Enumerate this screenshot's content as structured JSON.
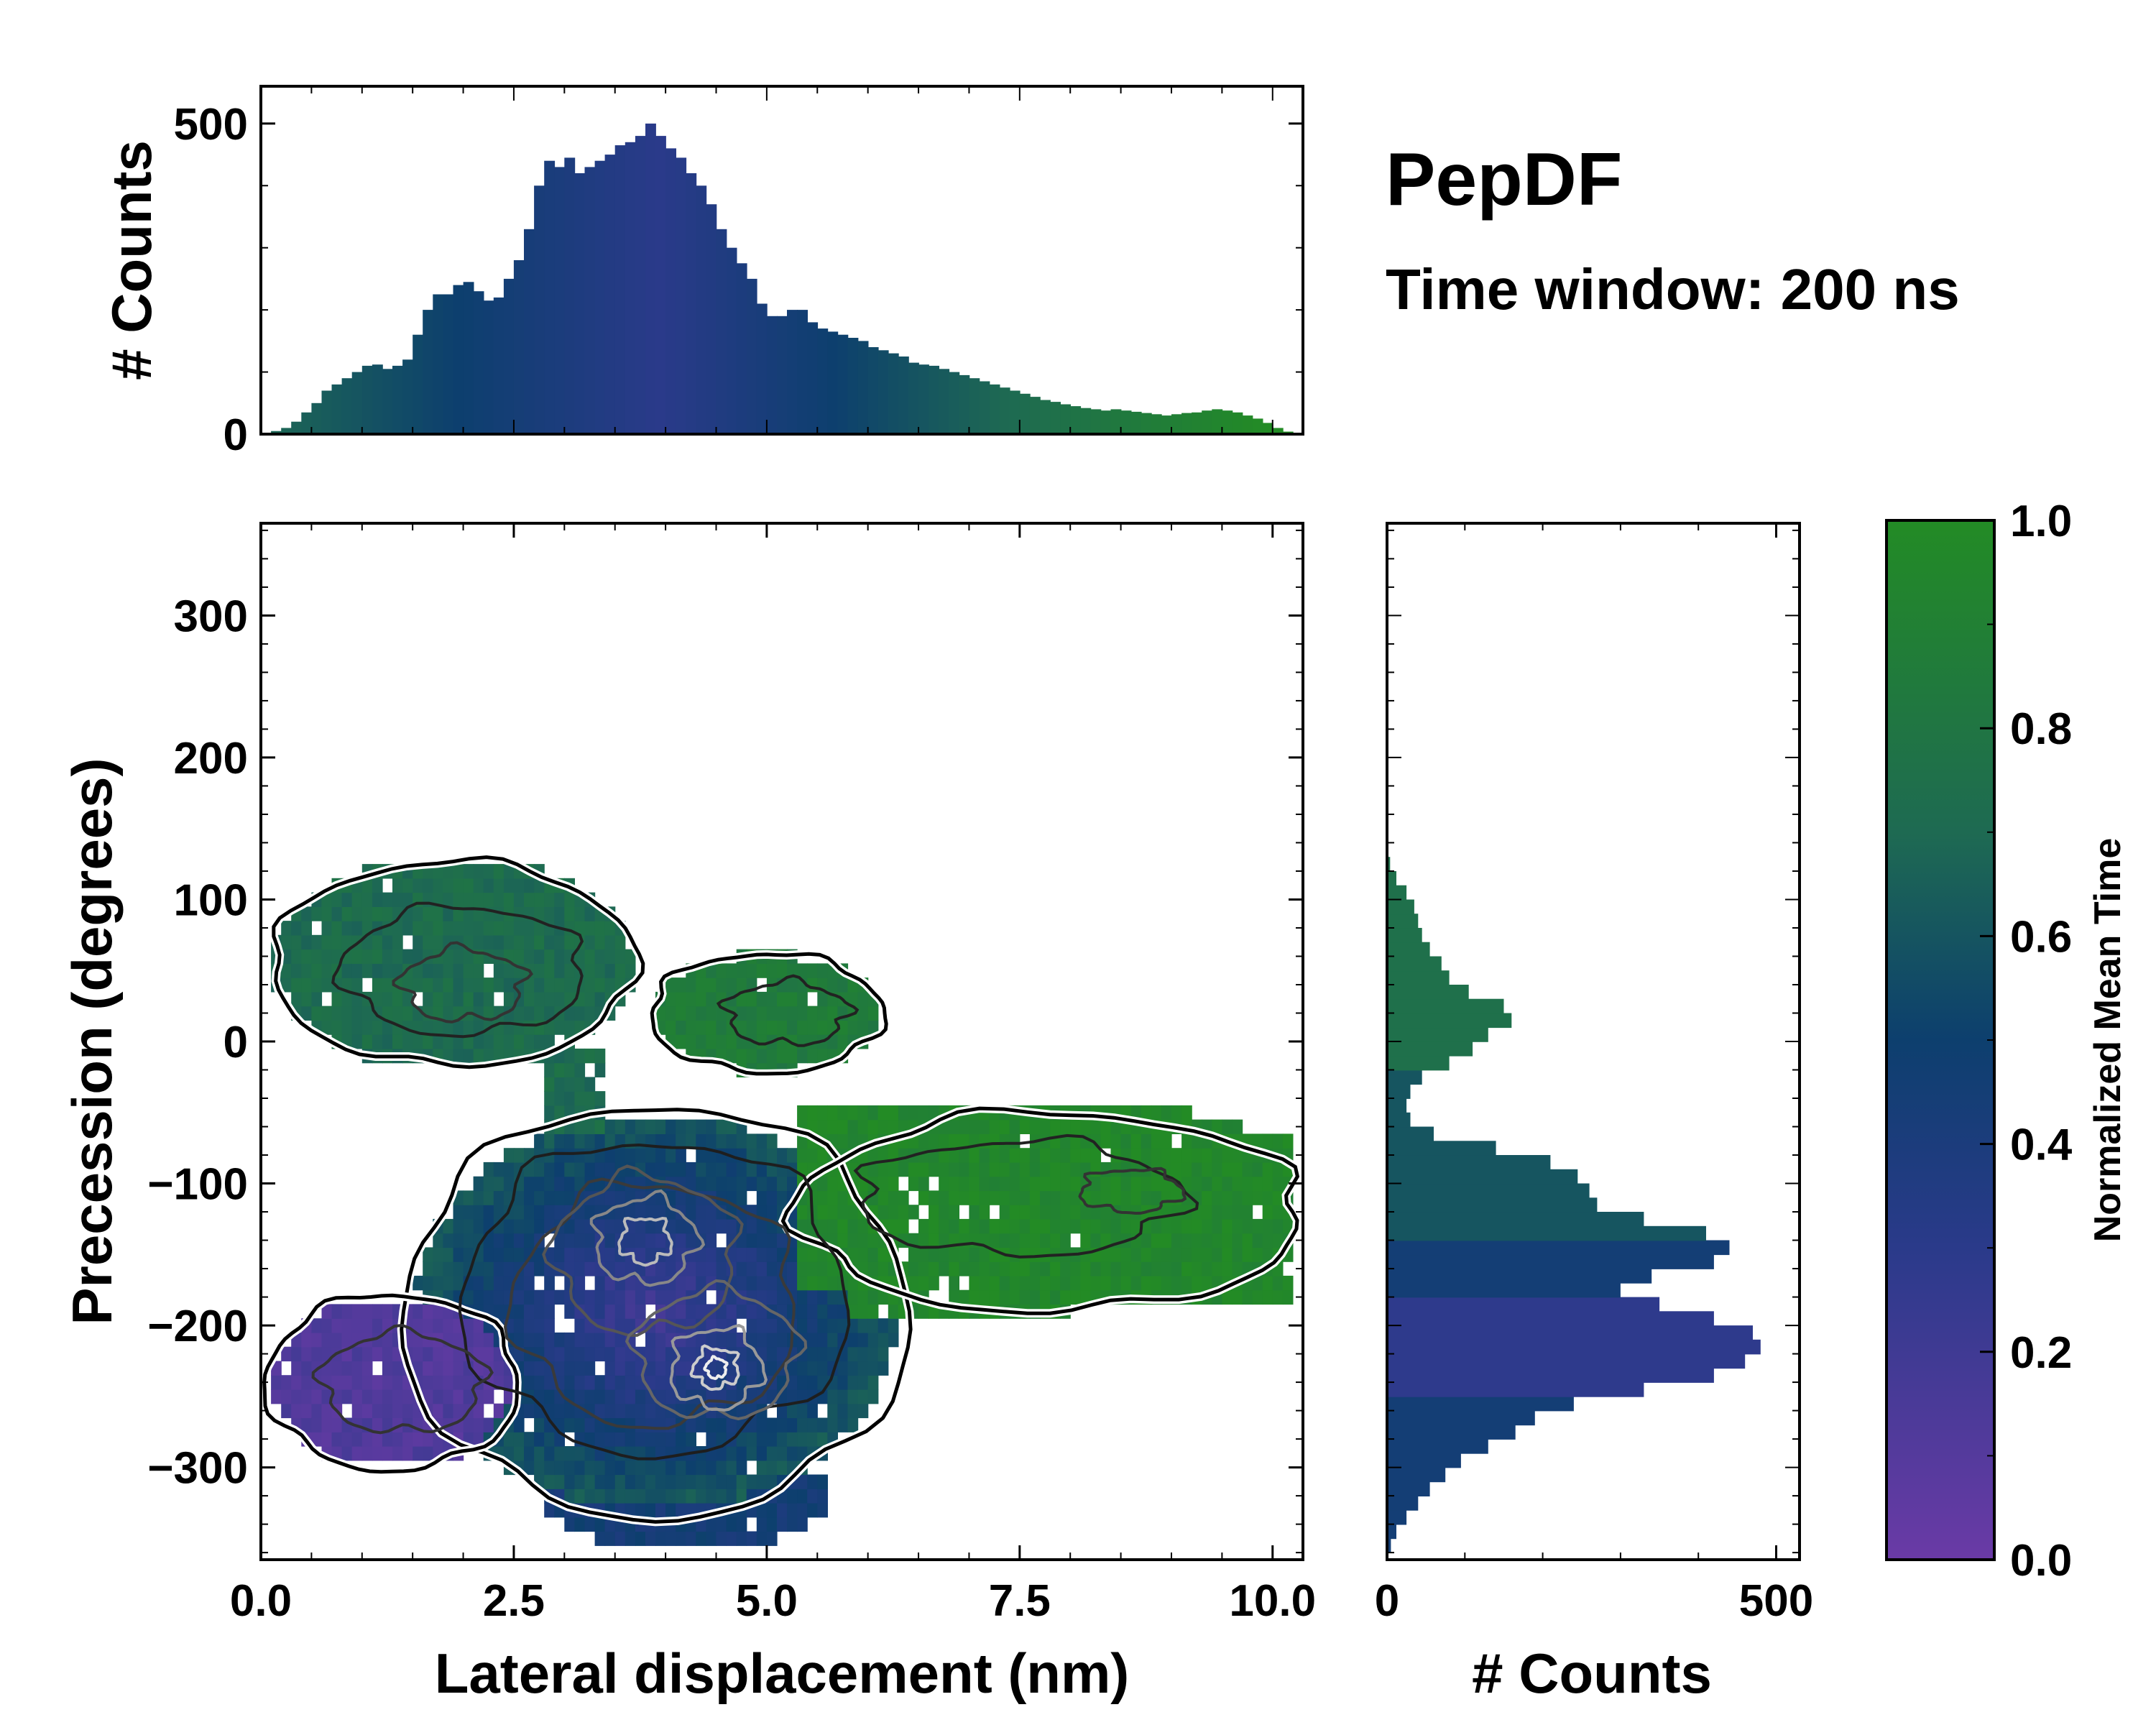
{
  "figure": {
    "title": "PepDF",
    "subtitle": "Time window: 200 ns"
  },
  "colors": {
    "purple": "#6a3aa6",
    "indigo": "#2a3a8a",
    "navy": "#0d3f6e",
    "teal": "#1e6a52",
    "green": "#238b25"
  },
  "chart_data": [
    {
      "id": "top-histogram",
      "type": "bar",
      "description_role": "marginal histogram of lateral displacement",
      "ylabel": "# Counts",
      "xlim": [
        0,
        10.3
      ],
      "ylim": [
        0,
        560
      ],
      "yticks": [
        0,
        500
      ],
      "ytick_labels": [
        "0",
        "500"
      ],
      "bin_width": 0.1,
      "x": [
        0.1,
        0.2,
        0.3,
        0.4,
        0.5,
        0.6,
        0.7,
        0.8,
        0.9,
        1.0,
        1.1,
        1.2,
        1.3,
        1.4,
        1.5,
        1.6,
        1.7,
        1.8,
        1.9,
        2.0,
        2.1,
        2.2,
        2.3,
        2.4,
        2.5,
        2.6,
        2.7,
        2.8,
        2.9,
        3.0,
        3.1,
        3.2,
        3.3,
        3.4,
        3.5,
        3.6,
        3.7,
        3.8,
        3.9,
        4.0,
        4.1,
        4.2,
        4.3,
        4.4,
        4.5,
        4.6,
        4.7,
        4.8,
        4.9,
        5.0,
        5.1,
        5.2,
        5.3,
        5.4,
        5.5,
        5.6,
        5.7,
        5.8,
        5.9,
        6.0,
        6.1,
        6.2,
        6.3,
        6.4,
        6.5,
        6.6,
        6.7,
        6.8,
        6.9,
        7.0,
        7.1,
        7.2,
        7.3,
        7.4,
        7.5,
        7.6,
        7.7,
        7.8,
        7.9,
        8.0,
        8.1,
        8.2,
        8.3,
        8.4,
        8.5,
        8.6,
        8.7,
        8.8,
        8.9,
        9.0,
        9.1,
        9.2,
        9.3,
        9.4,
        9.5,
        9.6,
        9.7,
        9.8,
        9.9,
        10.0,
        10.1,
        10.2
      ],
      "values": [
        2,
        5,
        10,
        20,
        35,
        50,
        70,
        80,
        90,
        100,
        110,
        112,
        105,
        110,
        120,
        160,
        200,
        225,
        225,
        240,
        245,
        230,
        215,
        220,
        250,
        280,
        330,
        400,
        440,
        430,
        445,
        420,
        430,
        440,
        450,
        465,
        470,
        480,
        500,
        480,
        460,
        445,
        420,
        400,
        370,
        330,
        300,
        275,
        250,
        210,
        190,
        190,
        200,
        200,
        180,
        170,
        165,
        160,
        155,
        150,
        140,
        135,
        130,
        125,
        115,
        112,
        110,
        105,
        100,
        95,
        90,
        85,
        80,
        75,
        70,
        65,
        60,
        55,
        52,
        48,
        45,
        42,
        40,
        38,
        40,
        38,
        36,
        34,
        32,
        30,
        32,
        34,
        35,
        38,
        40,
        38,
        35,
        30,
        25,
        18,
        10,
        4
      ]
    },
    {
      "id": "right-histogram",
      "type": "bar",
      "orientation": "horizontal",
      "description_role": "marginal histogram of precession",
      "xlabel": "# Counts",
      "xlim": [
        0,
        530
      ],
      "xticks": [
        0,
        500
      ],
      "xtick_labels": [
        "0",
        "500"
      ],
      "bin_width": 10,
      "y": [
        -360,
        -350,
        -340,
        -330,
        -320,
        -310,
        -300,
        -290,
        -280,
        -270,
        -260,
        -250,
        -240,
        -230,
        -220,
        -210,
        -200,
        -190,
        -180,
        -170,
        -160,
        -150,
        -140,
        -130,
        -120,
        -110,
        -100,
        -90,
        -80,
        -70,
        -60,
        -50,
        -40,
        -30,
        -20,
        -10,
        0,
        10,
        20,
        30,
        40,
        50,
        60,
        70,
        80,
        90,
        100,
        110,
        120,
        130
      ],
      "values": [
        5,
        12,
        25,
        40,
        55,
        75,
        95,
        130,
        165,
        190,
        240,
        330,
        420,
        460,
        480,
        470,
        420,
        350,
        300,
        340,
        420,
        440,
        410,
        330,
        270,
        260,
        245,
        210,
        140,
        60,
        30,
        25,
        30,
        45,
        80,
        110,
        130,
        160,
        150,
        105,
        80,
        70,
        55,
        45,
        40,
        35,
        25,
        12,
        4,
        0
      ]
    },
    {
      "id": "main-2d-histogram",
      "type": "heatmap",
      "title": "",
      "xlabel": "Lateral displacement (nm)",
      "ylabel": "Precession (degrees)",
      "xlim": [
        0,
        10.3
      ],
      "ylim": [
        -365,
        365
      ],
      "xticks": [
        0,
        2.5,
        5.0,
        7.5,
        10.0
      ],
      "xtick_labels": [
        "0.0",
        "2.5",
        "5.0",
        "7.5",
        "10.0"
      ],
      "yticks": [
        -300,
        -200,
        -100,
        0,
        100,
        200,
        300
      ],
      "ytick_labels": [
        "−300",
        "−200",
        "−100",
        "0",
        "100",
        "200",
        "300"
      ],
      "regions": [
        {
          "name": "upper-left-cluster",
          "x_range": [
            0.2,
            3.8
          ],
          "y_range": [
            -20,
            130
          ],
          "mean_time": 0.72
        },
        {
          "name": "upper-right-cluster",
          "x_range": [
            3.9,
            6.1
          ],
          "y_range": [
            -30,
            60
          ],
          "mean_time": 0.85
        },
        {
          "name": "central-core",
          "x_range": [
            1.5,
            6.6
          ],
          "y_range": [
            -330,
            -60
          ],
          "mean_time": 0.32
        },
        {
          "name": "lower-left-lobe",
          "x_range": [
            0.2,
            2.8
          ],
          "y_range": [
            -310,
            -180
          ],
          "mean_time": 0.12
        },
        {
          "name": "right-arm",
          "x_range": [
            5.6,
            10.3
          ],
          "y_range": [
            -200,
            -40
          ],
          "mean_time": 0.97
        }
      ],
      "density_peaks": [
        {
          "x": 3.8,
          "y": -140
        },
        {
          "x": 4.5,
          "y": -230
        }
      ]
    },
    {
      "id": "colorbar",
      "type": "colorbar",
      "label": "Normalized Mean Time",
      "range": [
        0.0,
        1.0
      ],
      "ticks": [
        0.0,
        0.2,
        0.4,
        0.6,
        0.8,
        1.0
      ],
      "tick_labels": [
        "0.0",
        "0.2",
        "0.4",
        "0.6",
        "0.8",
        "1.0"
      ],
      "stops": [
        {
          "v": 0.0,
          "color": "#6a3aa6"
        },
        {
          "v": 0.3,
          "color": "#2a3a8a"
        },
        {
          "v": 0.5,
          "color": "#0d3f6e"
        },
        {
          "v": 0.7,
          "color": "#1e6a52"
        },
        {
          "v": 1.0,
          "color": "#238b25"
        }
      ]
    }
  ]
}
